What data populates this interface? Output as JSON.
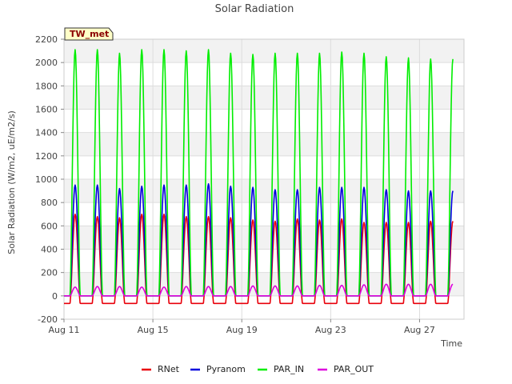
{
  "chart_data": {
    "type": "line",
    "title": "Solar Radiation",
    "xlabel": "Time",
    "ylabel": "Solar Radiation (W/m2, uE/m2/s)",
    "badge": "TW_met",
    "ylim": [
      -200,
      2200
    ],
    "yticks": [
      -200,
      0,
      200,
      400,
      600,
      800,
      1000,
      1200,
      1400,
      1600,
      1800,
      2000,
      2200
    ],
    "xlim": [
      "2023-08-11",
      "2023-08-29"
    ],
    "xticks": [
      {
        "label": "Aug 11",
        "day": 11
      },
      {
        "label": "Aug 15",
        "day": 15
      },
      {
        "label": "Aug 19",
        "day": 19
      },
      {
        "label": "Aug 23",
        "day": 23
      },
      {
        "label": "Aug 27",
        "day": 27
      }
    ],
    "grid": true,
    "legend_position": "bottom-center",
    "days": [
      "Aug 11",
      "Aug 12",
      "Aug 13",
      "Aug 14",
      "Aug 15",
      "Aug 16",
      "Aug 17",
      "Aug 18",
      "Aug 19",
      "Aug 20",
      "Aug 21",
      "Aug 22",
      "Aug 23",
      "Aug 24",
      "Aug 25",
      "Aug 26",
      "Aug 27",
      "Aug 28"
    ],
    "series": [
      {
        "name": "RNet",
        "color": "#e8000b",
        "night_value": -65,
        "daily_peak": [
          700,
          680,
          670,
          700,
          700,
          680,
          680,
          670,
          650,
          640,
          660,
          650,
          660,
          630,
          630,
          630,
          640,
          640
        ]
      },
      {
        "name": "Pyranom",
        "color": "#0000dd",
        "night_value": 0,
        "daily_peak": [
          950,
          950,
          920,
          940,
          950,
          950,
          960,
          940,
          930,
          910,
          910,
          930,
          930,
          930,
          910,
          900,
          900,
          900
        ]
      },
      {
        "name": "PAR_IN",
        "color": "#00ee00",
        "night_value": 0,
        "daily_peak": [
          2110,
          2110,
          2080,
          2110,
          2110,
          2100,
          2110,
          2080,
          2070,
          2080,
          2080,
          2080,
          2090,
          2080,
          2050,
          2040,
          2030,
          2030
        ]
      },
      {
        "name": "PAR_OUT",
        "color": "#dd00dd",
        "night_value": 0,
        "daily_peak": [
          75,
          80,
          80,
          75,
          75,
          80,
          80,
          80,
          85,
          85,
          85,
          90,
          90,
          95,
          100,
          100,
          100,
          100
        ]
      }
    ]
  }
}
